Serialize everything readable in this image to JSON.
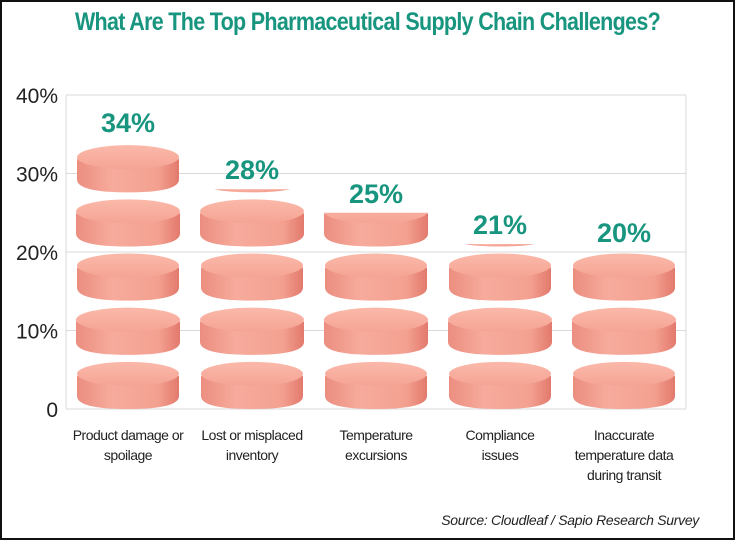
{
  "chart_data": {
    "type": "bar",
    "title": "What Are The Top Pharmaceutical Supply Chain Challenges?",
    "categories": [
      "Product damage or spoilage",
      "Lost or misplaced inventory",
      "Temperature excursions",
      "Compliance issues",
      "Inaccurate temperature data during transit"
    ],
    "category_lines": [
      [
        "Product damage or",
        "spoilage"
      ],
      [
        "Lost or misplaced",
        "inventory"
      ],
      [
        "Temperature",
        "excursions"
      ],
      [
        "Compliance",
        "issues"
      ],
      [
        "Inaccurate",
        "temperature data",
        "during transit"
      ]
    ],
    "values": [
      34,
      28,
      25,
      21,
      20
    ],
    "data_labels": [
      "34%",
      "28%",
      "25%",
      "21%",
      "20%"
    ],
    "ylim": [
      0,
      40
    ],
    "yticks": [
      0,
      10,
      20,
      30,
      40
    ],
    "ytick_labels": [
      "0",
      "10%",
      "20%",
      "30%",
      "40%"
    ],
    "grid": true,
    "bar_style": "stacked pill tablets",
    "source": "Source: Cloudleaf / Sapio Research Survey",
    "colors": {
      "title": "#17957f",
      "labels": "#17957f",
      "pill": "#f4a393",
      "pill_dark": "#e9877a",
      "grid": "#d9d9d9"
    }
  }
}
